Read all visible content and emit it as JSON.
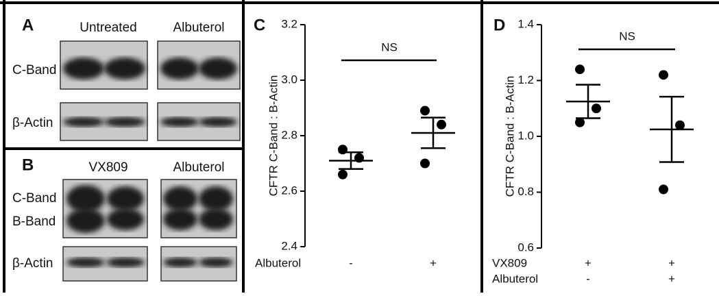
{
  "blots": [
    {
      "label": "A",
      "columns": [
        "Untreated",
        "Albuterol"
      ],
      "rows": [
        "C-Band",
        "β-Actin"
      ]
    },
    {
      "label": "B",
      "columns": [
        "VX809",
        "Albuterol"
      ],
      "rows": [
        "C-Band",
        "B-Band",
        "β-Actin"
      ]
    }
  ],
  "chart_data": [
    {
      "type": "dotplot",
      "panel": "C",
      "ylabel": "CFTR C-Band : B-Actin",
      "ylim": [
        2.4,
        3.2
      ],
      "yticks": [
        2.4,
        2.6,
        2.8,
        {
          "value": 3,
          "label": "3.0"
        },
        3.2
      ],
      "x_labels": [
        {
          "name": "Albuterol",
          "values": [
            "-",
            "+"
          ]
        }
      ],
      "values": [
        [
          2.75,
          2.72,
          2.66
        ],
        [
          2.89,
          2.84,
          2.7
        ]
      ],
      "means": [
        2.71,
        2.81
      ],
      "errors": [
        0.03,
        0.055
      ],
      "annotation": "NS",
      "color": "#000000"
    },
    {
      "type": "dotplot",
      "panel": "D",
      "ylabel": "CFTR C-Band : B-Actin",
      "ylim": [
        0.6,
        1.4
      ],
      "yticks": [
        0.6,
        0.8,
        {
          "value": 1,
          "label": "1.0"
        },
        1.2,
        1.4
      ],
      "x_labels": [
        {
          "name": "VX809",
          "values": [
            "+",
            "+"
          ]
        },
        {
          "name": "Albuterol",
          "values": [
            "-",
            "+"
          ]
        }
      ],
      "values": [
        [
          1.24,
          1.1,
          1.05
        ],
        [
          1.22,
          1.04,
          0.81
        ]
      ],
      "means": [
        1.125,
        1.025
      ],
      "errors": [
        0.06,
        0.117
      ],
      "annotation": "NS",
      "color": "#000000"
    }
  ]
}
